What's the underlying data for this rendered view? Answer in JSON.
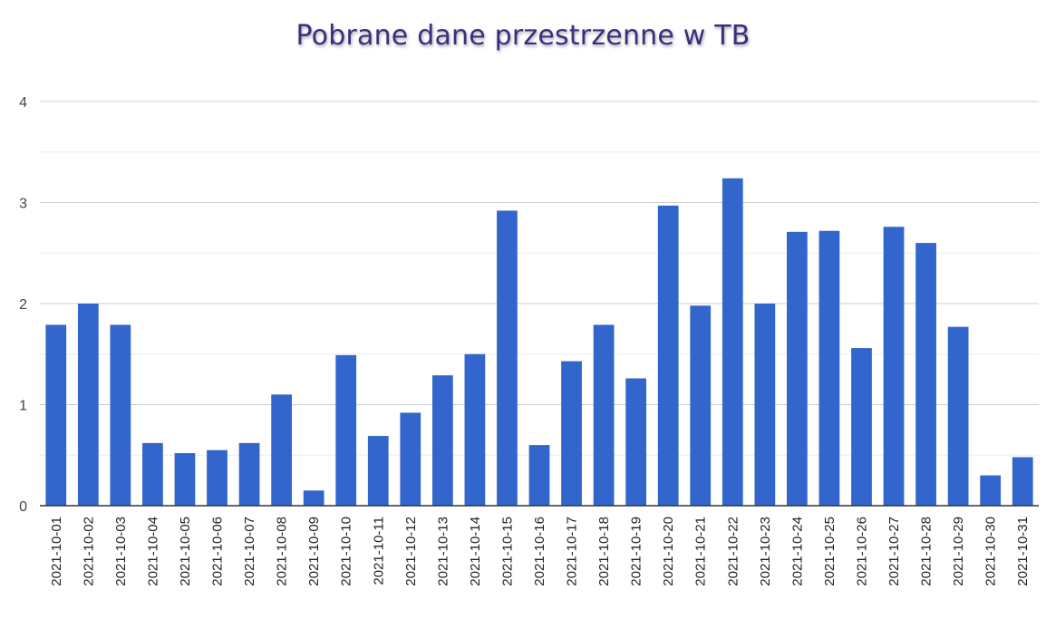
{
  "chart_data": {
    "type": "bar",
    "title": "Pobrane dane przestrzenne w TB",
    "xlabel": "",
    "ylabel": "",
    "ylim": [
      0,
      4
    ],
    "yticks": [
      0,
      1,
      2,
      3,
      4
    ],
    "grid": true,
    "bar_color": "#3366cc",
    "categories": [
      "2021-10-01",
      "2021-10-02",
      "2021-10-03",
      "2021-10-04",
      "2021-10-05",
      "2021-10-06",
      "2021-10-07",
      "2021-10-08",
      "2021-10-09",
      "2021-10-10",
      "2021-10-11",
      "2021-10-12",
      "2021-10-13",
      "2021-10-14",
      "2021-10-15",
      "2021-10-16",
      "2021-10-17",
      "2021-10-18",
      "2021-10-19",
      "2021-10-20",
      "2021-10-21",
      "2021-10-22",
      "2021-10-23",
      "2021-10-24",
      "2021-10-25",
      "2021-10-26",
      "2021-10-27",
      "2021-10-28",
      "2021-10-29",
      "2021-10-30",
      "2021-10-31"
    ],
    "values": [
      1.79,
      2.0,
      1.79,
      0.62,
      0.52,
      0.55,
      0.62,
      1.1,
      0.15,
      1.49,
      0.69,
      0.92,
      1.29,
      1.5,
      2.92,
      0.6,
      1.43,
      1.79,
      1.26,
      2.97,
      1.98,
      3.24,
      2.0,
      2.71,
      2.72,
      1.56,
      2.76,
      2.6,
      1.77,
      0.3,
      0.48
    ]
  }
}
